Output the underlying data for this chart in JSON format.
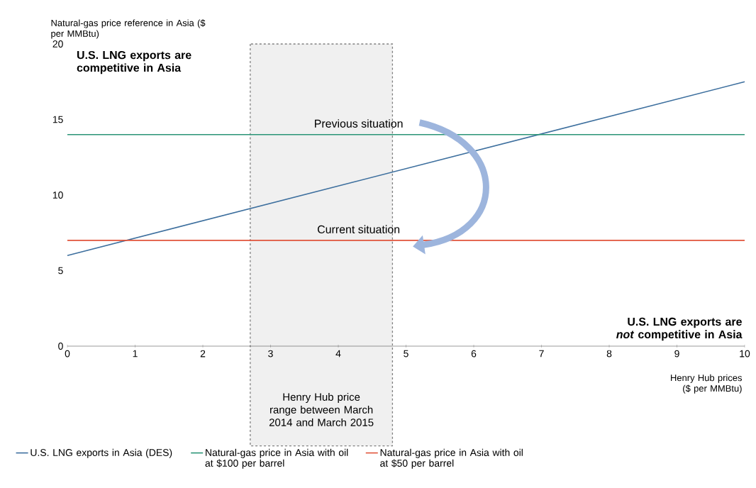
{
  "chart_data": {
    "type": "line",
    "xlabel": "Henry Hub prices ($ per MMBtu)",
    "ylabel": "Natural-gas price reference in Asia ($ per MMBtu)",
    "xlim": [
      0,
      10
    ],
    "ylim": [
      0,
      20
    ],
    "xticks": [
      0,
      1,
      2,
      3,
      4,
      5,
      6,
      7,
      8,
      9,
      10
    ],
    "yticks": [
      0,
      5,
      10,
      15,
      20
    ],
    "x": [
      0,
      10
    ],
    "series": [
      {
        "name": "U.S. LNG exports in Asia (DES)",
        "color": "#3d6f9e",
        "values": [
          6,
          17.5
        ]
      },
      {
        "name": "Natural-gas price in Asia with oil at $100 per barrel",
        "color": "#2b9577",
        "values": [
          14,
          14
        ]
      },
      {
        "name": "Natural-gas price in Asia with oil at $50 per barrel",
        "color": "#e0533a",
        "values": [
          7,
          7
        ]
      }
    ],
    "bands": [
      {
        "axis": "x",
        "from": 2.7,
        "to": 4.8,
        "label": "Henry Hub price range between March 2014 and March 2015",
        "color": "#808080"
      }
    ],
    "annotations": [
      {
        "text": "Previous situation",
        "x": 4.3,
        "y": 14
      },
      {
        "text": "Current situation",
        "x": 4.3,
        "y": 7
      },
      "U.S. LNG exports are competitive in Asia",
      "U.S. LNG exports are *not* competitive in Asia"
    ],
    "legend": "bottom"
  }
}
